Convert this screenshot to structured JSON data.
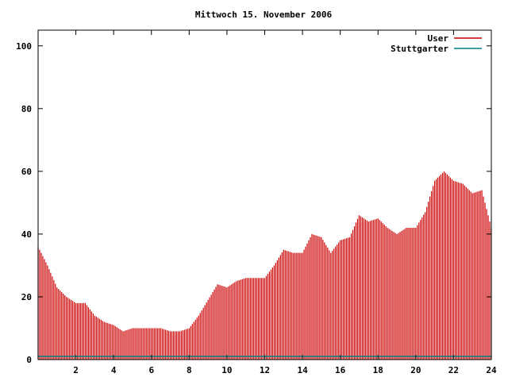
{
  "chart_data": {
    "type": "bar",
    "title": "Mittwoch 15. November 2006",
    "xlabel": "",
    "ylabel": "",
    "xlim": [
      0,
      24
    ],
    "ylim": [
      0,
      105
    ],
    "x_ticks": [
      "2",
      "4",
      "6",
      "8",
      "10",
      "12",
      "14",
      "16",
      "18",
      "20",
      "22",
      "24"
    ],
    "y_ticks": [
      "0",
      "20",
      "40",
      "60",
      "80",
      "100"
    ],
    "grid": false,
    "legend_position": "top-right",
    "series": [
      {
        "name": "User",
        "color": "#cc0000",
        "x": [
          0.0,
          0.5,
          1.0,
          1.5,
          2.0,
          2.5,
          3.0,
          3.5,
          4.0,
          4.5,
          5.0,
          5.5,
          6.0,
          6.5,
          7.0,
          7.5,
          8.0,
          8.5,
          9.0,
          9.5,
          10.0,
          10.5,
          11.0,
          11.5,
          12.0,
          12.5,
          13.0,
          13.5,
          14.0,
          14.5,
          15.0,
          15.5,
          16.0,
          16.5,
          17.0,
          17.5,
          18.0,
          18.5,
          19.0,
          19.5,
          20.0,
          20.5,
          21.0,
          21.5,
          22.0,
          22.5,
          23.0,
          23.5,
          24.0
        ],
        "values": [
          36,
          30,
          23,
          20,
          18,
          18,
          14,
          12,
          11,
          9,
          10,
          10,
          10,
          10,
          9,
          9,
          10,
          14,
          19,
          24,
          23,
          25,
          26,
          26,
          26,
          30,
          35,
          34,
          34,
          40,
          39,
          34,
          38,
          39,
          46,
          44,
          45,
          42,
          40,
          42,
          42,
          47,
          57,
          60,
          57,
          56,
          53,
          54,
          42
        ]
      },
      {
        "name": "Stuttgarter",
        "color": "#008080",
        "x": [
          0.0,
          1.2,
          11.0,
          14.5,
          18.5,
          21.5,
          24.0
        ],
        "values": [
          1,
          1,
          1,
          1,
          1,
          1,
          1
        ]
      }
    ]
  }
}
